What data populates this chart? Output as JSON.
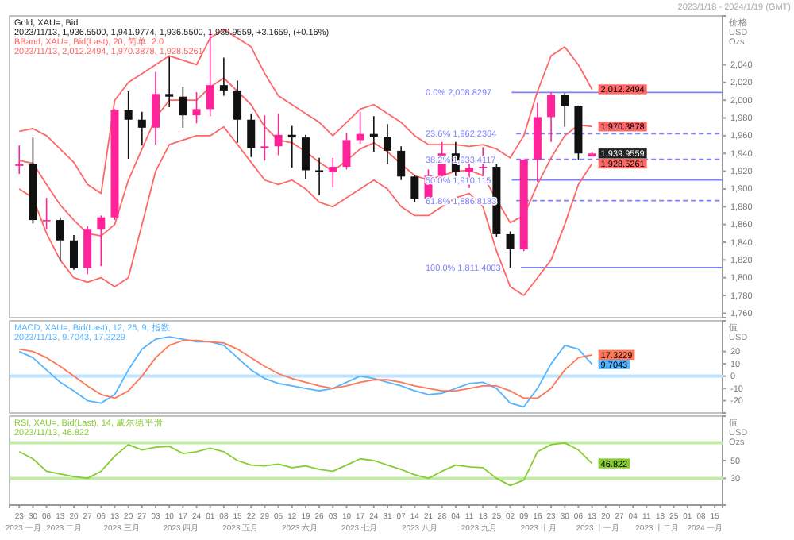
{
  "chart_data": [
    {
      "type": "candlestick",
      "title": "Gold, XAU=, Bid",
      "subtitle": "2023/11/13, 1,936.5500, 1,941.9774, 1,936.5500, 1,939.9559, +3.1659, (+0.16%)",
      "annotations": [
        "BBand, XAU=, Bid(Last), 20, 简单, 2.0",
        "2023/11/13, 2,012.2494, 1,970.3878, 1,928.5261",
        "2023/1/18 - 2024/1/19 (GMT)"
      ],
      "ylabel": "价格 USD Ozs",
      "tick_labels": "y",
      "x": [
        "2023-01-23",
        "2023-01-30",
        "2023-02-06",
        "2023-02-13",
        "2023-02-20",
        "2023-02-27",
        "2023-03-06",
        "2023-03-13",
        "2023-03-20",
        "2023-03-27",
        "2023-04-03",
        "2023-04-10",
        "2023-04-17",
        "2023-04-24",
        "2023-05-01",
        "2023-05-08",
        "2023-05-15",
        "2023-05-22",
        "2023-05-29",
        "2023-06-05",
        "2023-06-12",
        "2023-06-19",
        "2023-06-26",
        "2023-07-03",
        "2023-07-10",
        "2023-07-17",
        "2023-07-24",
        "2023-07-31",
        "2023-08-07",
        "2023-08-14",
        "2023-08-21",
        "2023-08-28",
        "2023-09-04",
        "2023-09-11",
        "2023-09-18",
        "2023-09-25",
        "2023-10-02",
        "2023-10-09",
        "2023-10-16",
        "2023-10-23",
        "2023-10-30",
        "2023-11-06",
        "2023-11-13"
      ],
      "ohlc": [
        [
          1926,
          1949,
          1917,
          1928
        ],
        [
          1928,
          1959,
          1861,
          1865
        ],
        [
          1865,
          1890,
          1855,
          1865
        ],
        [
          1865,
          1868,
          1819,
          1842
        ],
        [
          1842,
          1848,
          1809,
          1811
        ],
        [
          1811,
          1858,
          1804,
          1855
        ],
        [
          1855,
          1870,
          1813,
          1868
        ],
        [
          1868,
          1990,
          1865,
          1989
        ],
        [
          1989,
          2010,
          1934,
          1978
        ],
        [
          1978,
          1987,
          1949,
          1969
        ],
        [
          1969,
          2032,
          1950,
          2007
        ],
        [
          2007,
          2049,
          1992,
          2004
        ],
        [
          2004,
          2015,
          1969,
          1983
        ],
        [
          1983,
          2009,
          1974,
          1990
        ],
        [
          1990,
          2079,
          1982,
          2017
        ],
        [
          2017,
          2048,
          2005,
          2011
        ],
        [
          2011,
          2022,
          1952,
          1978
        ],
        [
          1978,
          1985,
          1936,
          1946
        ],
        [
          1946,
          1983,
          1932,
          1948
        ],
        [
          1948,
          1985,
          1938,
          1961
        ],
        [
          1961,
          1971,
          1924,
          1958
        ],
        [
          1958,
          1961,
          1911,
          1921
        ],
        [
          1921,
          1935,
          1893,
          1919
        ],
        [
          1919,
          1935,
          1902,
          1925
        ],
        [
          1925,
          1963,
          1922,
          1955
        ],
        [
          1955,
          1987,
          1951,
          1962
        ],
        [
          1962,
          1982,
          1942,
          1959
        ],
        [
          1959,
          1973,
          1928,
          1943
        ],
        [
          1943,
          1948,
          1910,
          1914
        ],
        [
          1914,
          1916,
          1885,
          1889
        ],
        [
          1889,
          1922,
          1885,
          1915
        ],
        [
          1915,
          1953,
          1912,
          1940
        ],
        [
          1940,
          1953,
          1914,
          1919
        ],
        [
          1919,
          1933,
          1901,
          1924
        ],
        [
          1924,
          1947,
          1914,
          1925
        ],
        [
          1925,
          1928,
          1846,
          1849
        ],
        [
          1849,
          1852,
          1811.4,
          1832
        ],
        [
          1832,
          1933,
          1830,
          1933
        ],
        [
          1933,
          1997,
          1908,
          1981
        ],
        [
          1981,
          2008.8,
          1953,
          2006
        ],
        [
          2006,
          2008,
          1970,
          1993
        ],
        [
          1993,
          1994,
          1933,
          1940
        ],
        [
          1936.55,
          1941.9774,
          1936.55,
          1939.9559
        ]
      ],
      "value_labels": [
        null,
        null,
        null,
        null,
        null,
        null,
        null,
        null,
        null,
        null,
        null,
        null,
        null,
        null,
        null,
        null,
        null,
        null,
        null,
        null,
        null,
        null,
        null,
        null,
        null,
        null,
        null,
        null,
        null,
        null,
        null,
        null,
        null,
        null,
        null,
        null,
        null,
        null,
        null,
        null,
        null,
        null,
        "1,939.9559"
      ],
      "series": [
        {
          "type": "line",
          "color": "#ff6666",
          "values": [
            1965,
            1968,
            1960,
            1945,
            1930,
            1905,
            1895,
            2000,
            2020,
            2030,
            2040,
            2050,
            2045,
            2040,
            2070,
            2080,
            2070,
            2060,
            2030,
            2005,
            1995,
            1985,
            1975,
            1960,
            1975,
            1990,
            1995,
            1985,
            1975,
            1960,
            1950,
            1950,
            1950,
            1948,
            1950,
            1945,
            1935,
            1960,
            2010,
            2050,
            2060,
            2040,
            2012.2494
          ],
          "value_labels": [
            null,
            null,
            null,
            null,
            null,
            null,
            null,
            null,
            null,
            null,
            null,
            null,
            null,
            null,
            null,
            null,
            null,
            null,
            null,
            null,
            null,
            null,
            null,
            null,
            null,
            null,
            null,
            null,
            null,
            null,
            null,
            null,
            null,
            null,
            null,
            null,
            null,
            null,
            null,
            null,
            null,
            null,
            "2,012.2494"
          ]
        },
        {
          "type": "line",
          "color": "#ff6666",
          "values": [
            1932,
            1929,
            1905,
            1882,
            1865,
            1850,
            1847,
            1860,
            1910,
            1945,
            1980,
            2000,
            2000,
            2000,
            2015,
            2025,
            2010,
            1995,
            1970,
            1955,
            1952,
            1942,
            1930,
            1920,
            1932,
            1945,
            1952,
            1942,
            1928,
            1915,
            1910,
            1915,
            1920,
            1921,
            1915,
            1888,
            1862,
            1870,
            1905,
            1935,
            1960,
            1972,
            1970.3878
          ],
          "value_labels": [
            null,
            null,
            null,
            null,
            null,
            null,
            null,
            null,
            null,
            null,
            null,
            null,
            null,
            null,
            null,
            null,
            null,
            null,
            null,
            null,
            null,
            null,
            null,
            null,
            null,
            null,
            null,
            null,
            null,
            null,
            null,
            null,
            null,
            null,
            null,
            null,
            null,
            null,
            null,
            null,
            null,
            null,
            "1,970.3878"
          ]
        },
        {
          "type": "line",
          "color": "#ff6666",
          "values": [
            1900,
            1890,
            1850,
            1820,
            1800,
            1795,
            1800,
            1790,
            1800,
            1860,
            1920,
            1950,
            1955,
            1960,
            1960,
            1970,
            1950,
            1930,
            1910,
            1905,
            1910,
            1900,
            1885,
            1880,
            1890,
            1900,
            1910,
            1900,
            1880,
            1870,
            1870,
            1880,
            1890,
            1895,
            1880,
            1830,
            1790,
            1780,
            1800,
            1820,
            1860,
            1905,
            1928.5261
          ],
          "value_labels": [
            null,
            null,
            null,
            null,
            null,
            null,
            null,
            null,
            null,
            null,
            null,
            null,
            null,
            null,
            null,
            null,
            null,
            null,
            null,
            null,
            null,
            null,
            null,
            null,
            null,
            null,
            null,
            null,
            null,
            null,
            null,
            null,
            null,
            null,
            null,
            null,
            null,
            null,
            null,
            null,
            null,
            null,
            "1,928.5261"
          ]
        }
      ],
      "ref_lines": [
        {
          "axis": "y",
          "value": 2008.8297,
          "label": "0.0%    2,008.8297",
          "color": "#8080ff",
          "line_style": "solid"
        },
        {
          "axis": "y",
          "value": 1962.2364,
          "label": "23.6%    1,962.2364",
          "color": "#8080ff",
          "line_style": "dashed"
        },
        {
          "axis": "y",
          "value": 1933.4117,
          "label": "38.2%    1,933.4117",
          "color": "#8080ff",
          "line_style": "dashed"
        },
        {
          "axis": "y",
          "value": 1910.115,
          "label": "50.0%    1,910.115",
          "color": "#8080ff",
          "line_style": "solid"
        },
        {
          "axis": "y",
          "value": 1886.8183,
          "label": "61.8%    1,886.8183",
          "color": "#8080ff",
          "line_style": "dashed"
        },
        {
          "axis": "y",
          "value": 1811.4003,
          "label": "100.0%    1,811.4003",
          "color": "#8080ff",
          "line_style": "solid"
        }
      ],
      "xlim": [
        "2023-01-18",
        "2024-01-19"
      ],
      "ylim": [
        1755,
        2095
      ],
      "yticks": [
        {
          "value": 1760,
          "label": "1,760"
        },
        {
          "value": 1780,
          "label": "1,780"
        },
        {
          "value": 1800,
          "label": "1,800"
        },
        {
          "value": 1820,
          "label": "1,820"
        },
        {
          "value": 1840,
          "label": "1,840"
        },
        {
          "value": 1860,
          "label": "1,860"
        },
        {
          "value": 1880,
          "label": "1,880"
        },
        {
          "value": 1900,
          "label": "1,900"
        },
        {
          "value": 1920,
          "label": "1,920"
        },
        {
          "value": 1940,
          "label": "1,940"
        },
        {
          "value": 1960,
          "label": "1,960"
        },
        {
          "value": 1980,
          "label": "1,980"
        },
        {
          "value": 2000,
          "label": "2,000"
        },
        {
          "value": 2020,
          "label": "2,020"
        },
        {
          "value": 2040,
          "label": "2,040"
        }
      ]
    },
    {
      "type": "line",
      "title": "MACD, XAU=, Bid(Last), 12, 26, 9, 指数",
      "subtitle": "2023/11/13, 9.7043, 17.3229",
      "ylabel": "值 USD",
      "tick_labels": "y",
      "x": [
        "2023-01-23",
        "2023-01-30",
        "2023-02-06",
        "2023-02-13",
        "2023-02-20",
        "2023-02-27",
        "2023-03-06",
        "2023-03-13",
        "2023-03-20",
        "2023-03-27",
        "2023-04-03",
        "2023-04-10",
        "2023-04-17",
        "2023-04-24",
        "2023-05-01",
        "2023-05-08",
        "2023-05-15",
        "2023-05-22",
        "2023-05-29",
        "2023-06-05",
        "2023-06-12",
        "2023-06-19",
        "2023-06-26",
        "2023-07-03",
        "2023-07-10",
        "2023-07-17",
        "2023-07-24",
        "2023-07-31",
        "2023-08-07",
        "2023-08-14",
        "2023-08-21",
        "2023-08-28",
        "2023-09-04",
        "2023-09-11",
        "2023-09-18",
        "2023-09-25",
        "2023-10-02",
        "2023-10-09",
        "2023-10-16",
        "2023-10-23",
        "2023-10-30",
        "2023-11-06",
        "2023-11-13"
      ],
      "series": [
        {
          "color": "#55b4ff",
          "values": [
            20,
            15,
            5,
            -5,
            -12,
            -20,
            -22,
            -15,
            5,
            22,
            30,
            32,
            30,
            28,
            28,
            25,
            15,
            5,
            -2,
            -6,
            -8,
            -10,
            -12,
            -10,
            -5,
            0,
            -2,
            -5,
            -8,
            -12,
            -15,
            -14,
            -10,
            -6,
            -5,
            -10,
            -22,
            -25,
            -10,
            10,
            25,
            22,
            9.7043
          ],
          "value_labels": [
            null,
            null,
            null,
            null,
            null,
            null,
            null,
            null,
            null,
            null,
            null,
            null,
            null,
            null,
            null,
            null,
            null,
            null,
            null,
            null,
            null,
            null,
            null,
            null,
            null,
            null,
            null,
            null,
            null,
            null,
            null,
            null,
            null,
            null,
            null,
            null,
            null,
            null,
            null,
            null,
            null,
            null,
            "9.7043"
          ]
        },
        {
          "color": "#ff7755",
          "values": [
            22,
            20,
            15,
            8,
            0,
            -8,
            -15,
            -18,
            -12,
            0,
            15,
            25,
            29,
            29,
            28,
            27,
            22,
            15,
            8,
            2,
            -2,
            -5,
            -8,
            -10,
            -8,
            -5,
            -3,
            -3,
            -5,
            -8,
            -10,
            -12,
            -12,
            -10,
            -8,
            -8,
            -12,
            -18,
            -18,
            -10,
            5,
            15,
            17.3229
          ],
          "value_labels": [
            null,
            null,
            null,
            null,
            null,
            null,
            null,
            null,
            null,
            null,
            null,
            null,
            null,
            null,
            null,
            null,
            null,
            null,
            null,
            null,
            null,
            null,
            null,
            null,
            null,
            null,
            null,
            null,
            null,
            null,
            null,
            null,
            null,
            null,
            null,
            null,
            null,
            null,
            null,
            null,
            null,
            null,
            "17.3229"
          ]
        }
      ],
      "ref_lines": [
        {
          "axis": "y",
          "value": 0,
          "color": "#bfe3ff",
          "line_style": "solid"
        }
      ],
      "xlim": [
        "2023-01-18",
        "2024-01-19"
      ],
      "ylim": [
        -30,
        45
      ],
      "yticks": [
        -20,
        -10,
        0,
        10,
        20
      ]
    },
    {
      "type": "line",
      "title": "RSI, XAU=, Bid(Last), 14, 威尔德平滑",
      "subtitle": "2023/11/13, 46.822",
      "ylabel": "值 USD Ozs",
      "x": [
        "2023-01-23",
        "2023-01-30",
        "2023-02-06",
        "2023-02-13",
        "2023-02-20",
        "2023-02-27",
        "2023-03-06",
        "2023-03-13",
        "2023-03-20",
        "2023-03-27",
        "2023-04-03",
        "2023-04-10",
        "2023-04-17",
        "2023-04-24",
        "2023-05-01",
        "2023-05-08",
        "2023-05-15",
        "2023-05-22",
        "2023-05-29",
        "2023-06-05",
        "2023-06-12",
        "2023-06-19",
        "2023-06-26",
        "2023-07-03",
        "2023-07-10",
        "2023-07-17",
        "2023-07-24",
        "2023-07-31",
        "2023-08-07",
        "2023-08-14",
        "2023-08-21",
        "2023-08-28",
        "2023-09-04",
        "2023-09-11",
        "2023-09-18",
        "2023-09-25",
        "2023-10-02",
        "2023-10-09",
        "2023-10-16",
        "2023-10-23",
        "2023-10-30",
        "2023-11-06",
        "2023-11-13"
      ],
      "series": [
        {
          "color": "#88cc33",
          "values": [
            60,
            52,
            38,
            35,
            32,
            30,
            38,
            55,
            68,
            62,
            65,
            66,
            58,
            60,
            64,
            60,
            50,
            45,
            44,
            46,
            42,
            44,
            40,
            38,
            45,
            52,
            50,
            45,
            40,
            34,
            30,
            38,
            45,
            43,
            42,
            30,
            22,
            28,
            60,
            68,
            70,
            62,
            46.822
          ],
          "value_labels": [
            null,
            null,
            null,
            null,
            null,
            null,
            null,
            null,
            null,
            null,
            null,
            null,
            null,
            null,
            null,
            null,
            null,
            null,
            null,
            null,
            null,
            null,
            null,
            null,
            null,
            null,
            null,
            null,
            null,
            null,
            null,
            null,
            null,
            null,
            null,
            null,
            null,
            null,
            null,
            null,
            null,
            null,
            "46.822"
          ]
        }
      ],
      "ref_lines": [
        {
          "axis": "y",
          "value": 70,
          "color": "#c4eaa8",
          "line_style": "solid"
        },
        {
          "axis": "y",
          "value": 30,
          "color": "#c4eaa8",
          "line_style": "solid"
        }
      ],
      "annotations": [
        "2023 一月",
        "2023 二月",
        "2023 三月",
        "2023 四月",
        "2023 五月",
        "2023 六月",
        "2023 七月",
        "2023 八月",
        "2023 九月",
        "2023 十月",
        "2023 十一月",
        "2023 十二月",
        "2024 一月"
      ],
      "xlim": [
        "2023-01-18",
        "2024-01-19"
      ],
      "ylim": [
        0,
        100
      ],
      "yticks": [
        30,
        50
      ],
      "xticks": [
        {
          "value": "2023-01-23",
          "label": "23"
        },
        {
          "value": "2023-01-30",
          "label": "30"
        },
        {
          "value": "2023-02-06",
          "label": "06"
        },
        {
          "value": "2023-02-13",
          "label": "13"
        },
        {
          "value": "2023-02-20",
          "label": "20"
        },
        {
          "value": "2023-02-27",
          "label": "27"
        },
        {
          "value": "2023-03-06",
          "label": "06"
        },
        {
          "value": "2023-03-13",
          "label": "13"
        },
        {
          "value": "2023-03-20",
          "label": "20"
        },
        {
          "value": "2023-03-27",
          "label": "27"
        },
        {
          "value": "2023-04-03",
          "label": "03"
        },
        {
          "value": "2023-04-10",
          "label": "10"
        },
        {
          "value": "2023-04-17",
          "label": "17"
        },
        {
          "value": "2023-04-24",
          "label": "24"
        },
        {
          "value": "2023-05-01",
          "label": "01"
        },
        {
          "value": "2023-05-08",
          "label": "08"
        },
        {
          "value": "2023-05-15",
          "label": "15"
        },
        {
          "value": "2023-05-22",
          "label": "22"
        },
        {
          "value": "2023-05-29",
          "label": "29"
        },
        {
          "value": "2023-06-05",
          "label": "05"
        },
        {
          "value": "2023-06-12",
          "label": "12"
        },
        {
          "value": "2023-06-19",
          "label": "19"
        },
        {
          "value": "2023-06-26",
          "label": "26"
        },
        {
          "value": "2023-07-03",
          "label": "03"
        },
        {
          "value": "2023-07-10",
          "label": "10"
        },
        {
          "value": "2023-07-17",
          "label": "17"
        },
        {
          "value": "2023-07-24",
          "label": "24"
        },
        {
          "value": "2023-07-31",
          "label": "31"
        },
        {
          "value": "2023-08-07",
          "label": "07"
        },
        {
          "value": "2023-08-14",
          "label": "14"
        },
        {
          "value": "2023-08-21",
          "label": "21"
        },
        {
          "value": "2023-08-28",
          "label": "28"
        },
        {
          "value": "2023-09-04",
          "label": "04"
        },
        {
          "value": "2023-09-11",
          "label": "11"
        },
        {
          "value": "2023-09-18",
          "label": "18"
        },
        {
          "value": "2023-09-25",
          "label": "25"
        },
        {
          "value": "2023-10-02",
          "label": "02"
        },
        {
          "value": "2023-10-09",
          "label": "09"
        },
        {
          "value": "2023-10-16",
          "label": "16"
        },
        {
          "value": "2023-10-23",
          "label": "23"
        },
        {
          "value": "2023-10-30",
          "label": "30"
        },
        {
          "value": "2023-11-06",
          "label": "06"
        },
        {
          "value": "2023-11-13",
          "label": "13"
        },
        {
          "value": "2023-11-20",
          "label": "20"
        },
        {
          "value": "2023-11-27",
          "label": "27"
        },
        {
          "value": "2023-12-04",
          "label": "04"
        },
        {
          "value": "2023-12-11",
          "label": "11"
        },
        {
          "value": "2023-12-18",
          "label": "18"
        },
        {
          "value": "2023-12-25",
          "label": "25"
        },
        {
          "value": "2024-01-01",
          "label": "01"
        },
        {
          "value": "2024-01-08",
          "label": "08"
        },
        {
          "value": "2024-01-15",
          "label": "15"
        }
      ]
    }
  ]
}
